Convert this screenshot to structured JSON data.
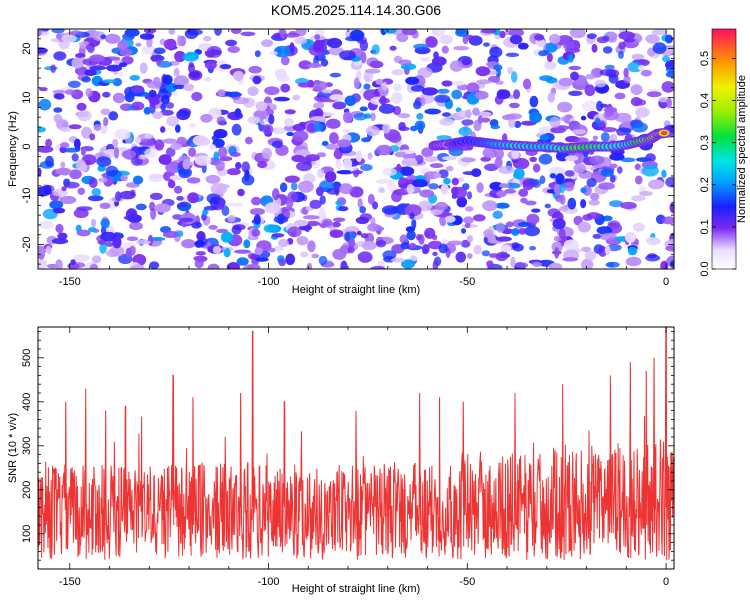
{
  "title": "KOM5.2025.114.14.30.G06",
  "chart_data": [
    {
      "type": "heatmap",
      "panel": "spectrogram",
      "xlabel": "Height of straight line (km)",
      "ylabel": "Frequency (Hz)",
      "xlim": [
        -158,
        2
      ],
      "ylim": [
        -25,
        24
      ],
      "xticks": [
        -150,
        -100,
        -50,
        0
      ],
      "xtick_labels": [
        "-150",
        "-100",
        "-50",
        "0"
      ],
      "yticks": [
        -20,
        -10,
        0,
        10,
        20
      ],
      "ytick_labels": [
        "-20",
        "-10",
        "0",
        "10",
        "20"
      ],
      "colorbar": {
        "label": "Normalized spectral amplitude",
        "range": [
          0,
          0.57
        ],
        "ticks": [
          0.0,
          0.1,
          0.2,
          0.3,
          0.4,
          0.5
        ],
        "tick_labels": [
          "0.0",
          "0.1",
          "0.2",
          "0.3",
          "0.4",
          "0.5"
        ]
      },
      "ridge": {
        "x": [
          -58,
          -55,
          -50,
          -46,
          -42,
          -38,
          -34,
          -30,
          -26,
          -22,
          -18,
          -14,
          -10,
          -7,
          -4,
          -2,
          0
        ],
        "y": [
          0.2,
          0.4,
          1.2,
          0.8,
          0.4,
          0.2,
          0.0,
          0.0,
          -0.4,
          -0.2,
          0.0,
          0.0,
          0.4,
          1.0,
          1.6,
          2.6,
          2.8
        ],
        "amplitude": [
          0.12,
          0.1,
          0.2,
          0.22,
          0.28,
          0.33,
          0.32,
          0.31,
          0.36,
          0.44,
          0.4,
          0.35,
          0.33,
          0.42,
          0.46,
          0.53,
          0.55
        ]
      }
    },
    {
      "type": "line",
      "panel": "snr",
      "xlabel": "Height of straight line (km)",
      "ylabel": "SNR (10 * v/v)",
      "xlim": [
        -158,
        2
      ],
      "ylim": [
        20,
        570
      ],
      "xticks": [
        -150,
        -100,
        -50,
        0
      ],
      "xtick_labels": [
        "-150",
        "-100",
        "-50",
        "0"
      ],
      "yticks": [
        100,
        200,
        300,
        400,
        500
      ],
      "ytick_labels": [
        "100",
        "200",
        "300",
        "400",
        "500"
      ],
      "color": "#ee3333",
      "peaks": {
        "x": [
          -151,
          -146,
          -141,
          -136,
          -124,
          -119,
          -107,
          -104,
          -96,
          -78,
          -62,
          -57,
          -51,
          -38,
          -26,
          -14,
          -9,
          -5,
          -3,
          0
        ],
        "y": [
          400,
          430,
          380,
          390,
          460,
          410,
          420,
          560,
          400,
          380,
          420,
          410,
          400,
          420,
          440,
          460,
          490,
          470,
          500,
          570
        ]
      }
    }
  ]
}
